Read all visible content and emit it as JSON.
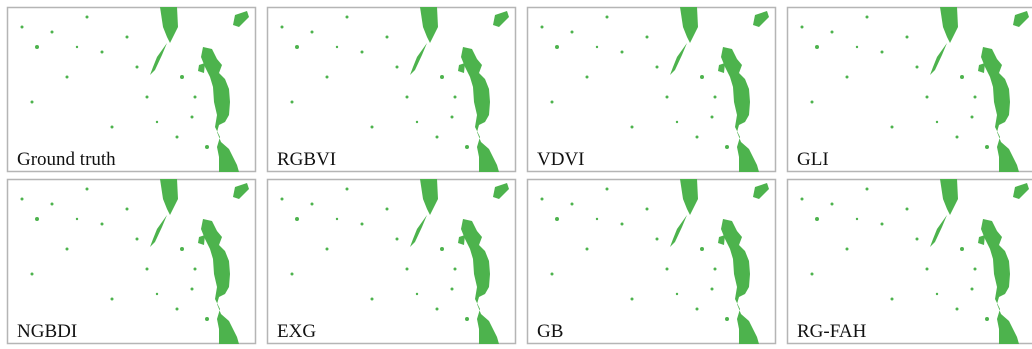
{
  "panels": [
    {
      "label": "Ground truth"
    },
    {
      "label": "RGBVI"
    },
    {
      "label": "VDVI"
    },
    {
      "label": "GLI"
    },
    {
      "label": "NGBDI"
    },
    {
      "label": "EXG"
    },
    {
      "label": "GB"
    },
    {
      "label": "RG-FAH"
    }
  ]
}
